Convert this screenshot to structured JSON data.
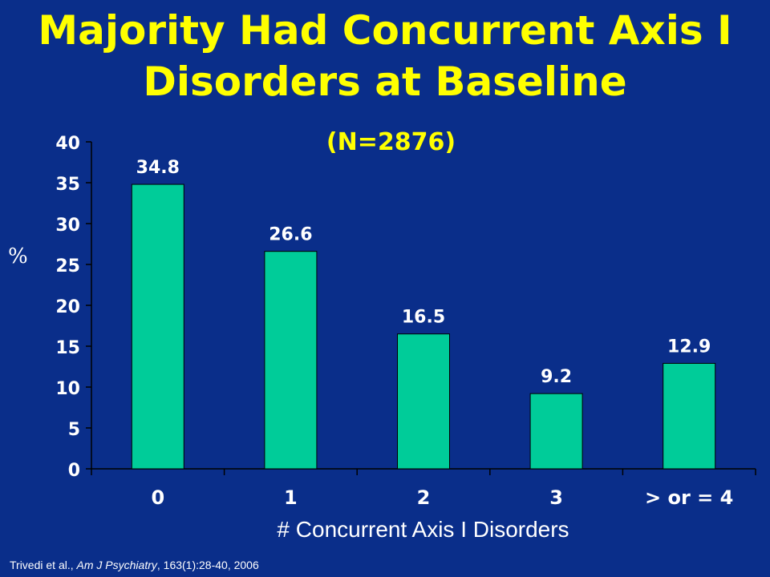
{
  "chart_data": {
    "type": "bar",
    "title": "Majority Had Concurrent Axis I Disorders at Baseline",
    "subtitle": "(N=2876)",
    "categories": [
      "0",
      "1",
      "2",
      "3",
      "> or = 4"
    ],
    "values": [
      34.8,
      26.6,
      16.5,
      9.2,
      12.9
    ],
    "data_labels": [
      "34.8",
      "26.6",
      "16.5",
      "9.2",
      "12.9"
    ],
    "xlabel": "# Concurrent Axis I Disorders",
    "ylabel": "%",
    "ylim": [
      0,
      40
    ],
    "yticks": [
      0,
      5,
      10,
      15,
      20,
      25,
      30,
      35,
      40
    ],
    "grid": false,
    "colors": {
      "bar": "#00cc99",
      "background": "#0a2e8a",
      "title": "#ffff00",
      "text": "#ffffff",
      "axis": "#000000"
    }
  },
  "source": {
    "prefix": "Trivedi et al., ",
    "journal": "Am J Psychiatry",
    "suffix": ", 163(1):28-40, 2006"
  }
}
